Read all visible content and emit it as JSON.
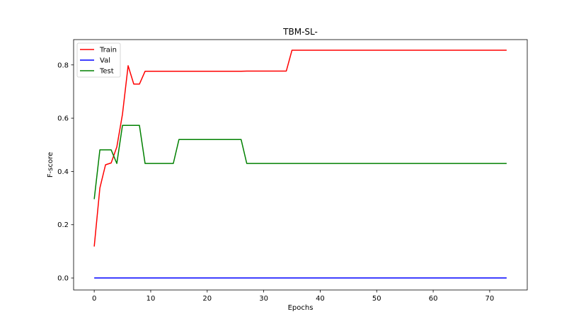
{
  "chart_data": {
    "type": "line",
    "title": "TBM-SL-",
    "xlabel": "Epochs",
    "ylabel": "F-score",
    "xlim": [
      -3.65,
      76.65
    ],
    "ylim": [
      -0.045,
      0.895
    ],
    "xticks": [
      0,
      10,
      20,
      30,
      40,
      50,
      60,
      70
    ],
    "yticks": [
      0.0,
      0.2,
      0.4,
      0.6,
      0.8
    ],
    "ytick_labels": [
      "0.0",
      "0.2",
      "0.4",
      "0.6",
      "0.8"
    ],
    "grid": false,
    "legend_position": "top-left",
    "series": [
      {
        "name": "Train",
        "color": "#ff0000",
        "x": [
          0,
          1,
          2,
          3,
          4,
          5,
          6,
          7,
          8,
          9,
          26,
          27,
          34,
          35,
          73
        ],
        "y": [
          0.118,
          0.338,
          0.425,
          0.432,
          0.492,
          0.615,
          0.797,
          0.728,
          0.728,
          0.776,
          0.776,
          0.777,
          0.777,
          0.855,
          0.855
        ]
      },
      {
        "name": "Val",
        "color": "#0000ff",
        "x": [
          0,
          73
        ],
        "y": [
          0.0,
          0.0
        ]
      },
      {
        "name": "Test",
        "color": "#008000",
        "x": [
          0,
          1,
          3,
          4,
          5,
          8,
          9,
          14,
          15,
          26,
          27,
          73
        ],
        "y": [
          0.296,
          0.481,
          0.481,
          0.43,
          0.573,
          0.573,
          0.43,
          0.43,
          0.52,
          0.52,
          0.43,
          0.43
        ]
      }
    ]
  }
}
